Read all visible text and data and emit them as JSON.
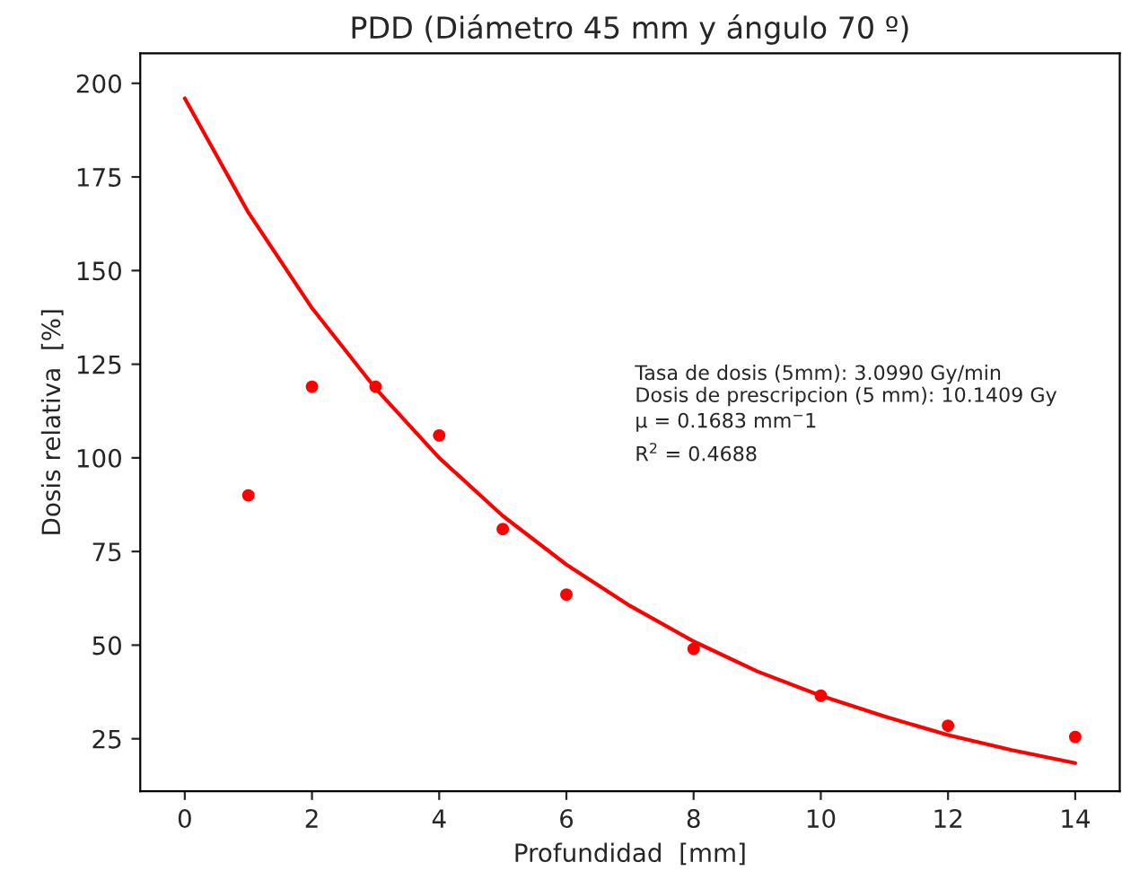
{
  "chart_data": {
    "type": "scatter",
    "title": "PDD (Diámetro 45 mm y ángulo 70 º)",
    "xlabel": "Profundidad  [mm]",
    "ylabel": "Dosis relativa  [%]",
    "series": [
      {
        "color": "#ff0000",
        "marker": "circle",
        "x": [
          1,
          2,
          3,
          4,
          5,
          6,
          8,
          10,
          12,
          14
        ],
        "values": [
          90,
          119,
          119,
          106,
          81,
          63.5,
          49,
          36.5,
          28.5,
          25.5
        ]
      },
      {
        "type": "line",
        "color": "#ff0000",
        "marker": "none",
        "line_style": "solid",
        "x": [
          0,
          1,
          2,
          3,
          4,
          5,
          6,
          7,
          8,
          9,
          10,
          11,
          12,
          13,
          14
        ],
        "values": [
          196,
          165.5,
          140,
          118.5,
          100,
          84.5,
          71.5,
          60.5,
          51,
          43,
          36.5,
          31,
          26,
          22,
          18.5
        ]
      }
    ],
    "annotations": [
      "Tasa de dosis (5mm): 3.0990 Gy/min",
      "Dosis de prescripcion (5 mm): 10.1409 Gy",
      "μ = 0.1683 mm$^{−}$1",
      "R$^{2}$ = 0.4688"
    ],
    "xlim": [
      -0.7,
      14.7
    ],
    "ylim": [
      11,
      208
    ],
    "xticks": [
      0,
      2,
      4,
      6,
      8,
      10,
      12,
      14
    ],
    "yticks": [
      25,
      50,
      75,
      100,
      125,
      150,
      175,
      200
    ],
    "grid": false,
    "legend": false
  }
}
